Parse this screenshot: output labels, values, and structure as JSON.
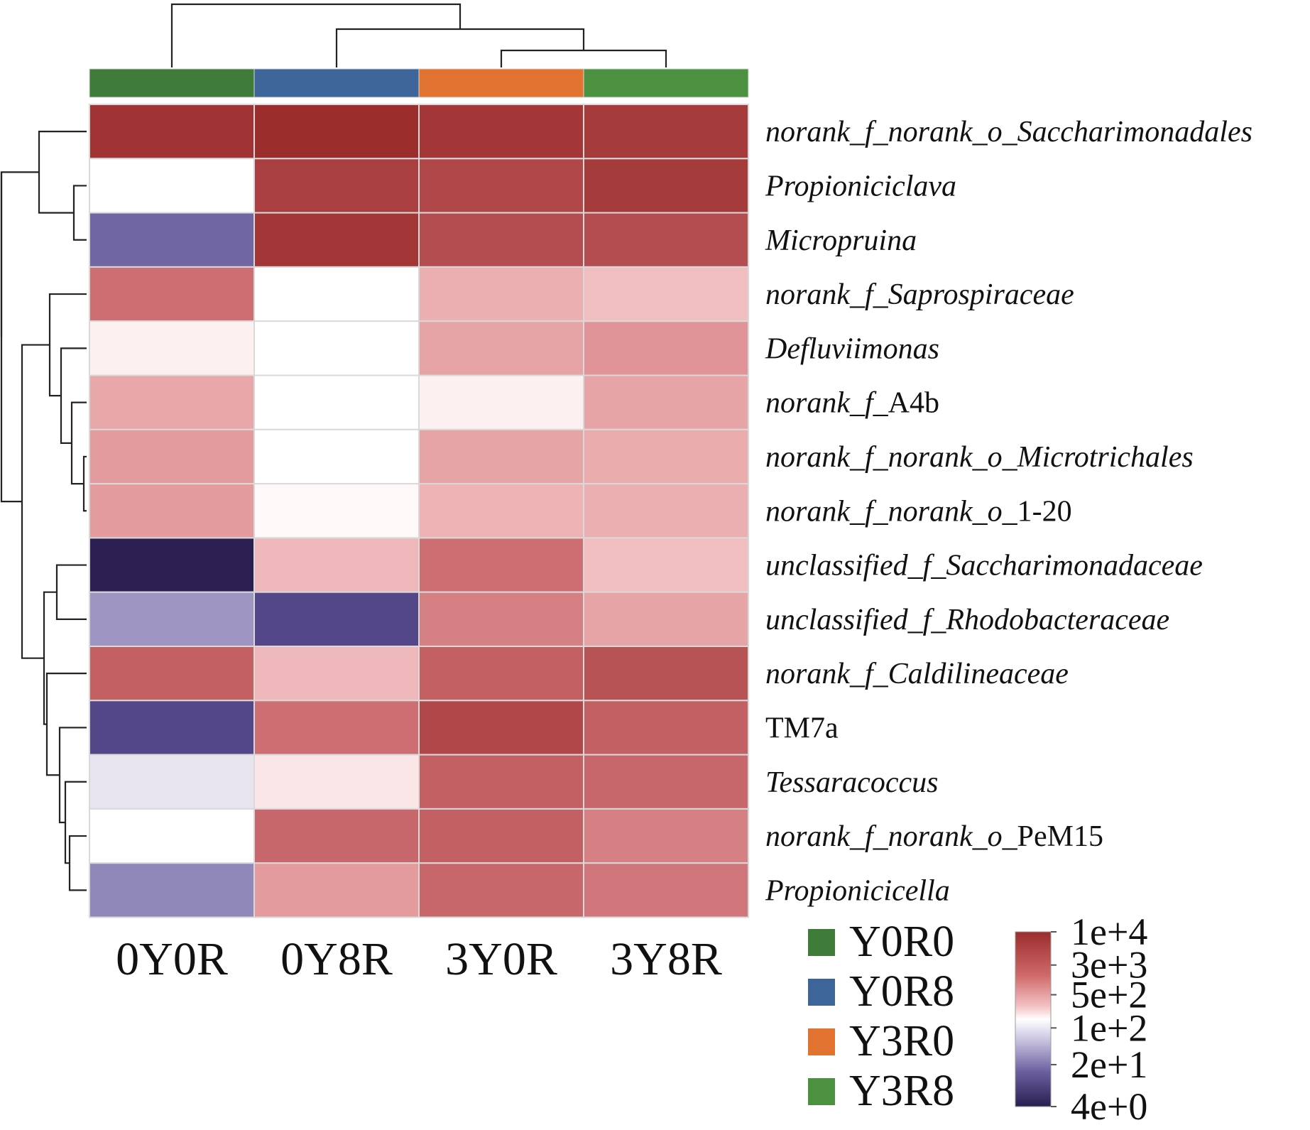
{
  "chart_data": {
    "type": "heatmap",
    "columns": [
      "0Y0R",
      "0Y8R",
      "3Y0R",
      "3Y8R"
    ],
    "rows": [
      {
        "label": "norank_f_norank_o_Saccharimonadales",
        "italic_prefix": "norank_f_norank_o_Saccharimonadales",
        "roman_suffix": ""
      },
      {
        "label": "Propioniciclava",
        "italic_prefix": "Propioniciclava",
        "roman_suffix": ""
      },
      {
        "label": "Micropruina",
        "italic_prefix": "Micropruina",
        "roman_suffix": ""
      },
      {
        "label": "norank_f_Saprospiraceae",
        "italic_prefix": "norank_f_Saprospiraceae",
        "roman_suffix": ""
      },
      {
        "label": "Defluviimonas",
        "italic_prefix": "Defluviimonas",
        "roman_suffix": ""
      },
      {
        "label": "norank_f_A4b",
        "italic_prefix": "norank_f_",
        "roman_suffix": "A4b"
      },
      {
        "label": "norank_f_norank_o_Microtrichales",
        "italic_prefix": "norank_f_norank_o_Microtrichales",
        "roman_suffix": ""
      },
      {
        "label": "norank_f_norank_o_1-20",
        "italic_prefix": "norank_f_norank_o_",
        "roman_suffix": "1-20"
      },
      {
        "label": "unclassified_f_Saccharimonadaceae",
        "italic_prefix": "unclassified_f_Saccharimonadaceae",
        "roman_suffix": ""
      },
      {
        "label": "unclassified_f_Rhodobacteraceae",
        "italic_prefix": "unclassified_f_Rhodobacteraceae",
        "roman_suffix": ""
      },
      {
        "label": "norank_f_Caldilineaceae",
        "italic_prefix": "norank_f_Caldilineaceae",
        "roman_suffix": ""
      },
      {
        "label": "TM7a",
        "italic_prefix": "",
        "roman_suffix": "TM7a"
      },
      {
        "label": "Tessaracoccus",
        "italic_prefix": "Tessaracoccus",
        "roman_suffix": ""
      },
      {
        "label": "norank_f_norank_o_PeM15",
        "italic_prefix": "norank_f_norank_o_",
        "roman_suffix": "PeM15"
      },
      {
        "label": "Propionicicella",
        "italic_prefix": "Propionicicella",
        "roman_suffix": ""
      }
    ],
    "values": [
      [
        9000,
        10000,
        8500,
        8000
      ],
      [
        100,
        7500,
        6500,
        8000
      ],
      [
        25,
        8500,
        6000,
        6000
      ],
      [
        3500,
        100,
        900,
        600
      ],
      [
        150,
        100,
        1200,
        1700
      ],
      [
        1100,
        100,
        150,
        1200
      ],
      [
        1500,
        100,
        1200,
        1000
      ],
      [
        1500,
        120,
        800,
        900
      ],
      [
        4,
        700,
        3500,
        600
      ],
      [
        40,
        15,
        2500,
        1200
      ],
      [
        4500,
        700,
        4500,
        5500
      ],
      [
        15,
        3500,
        6500,
        4500
      ],
      [
        80,
        200,
        4500,
        4000
      ],
      [
        100,
        4000,
        4500,
        2500
      ],
      [
        35,
        1500,
        4000,
        3000
      ]
    ],
    "group_colors": [
      "#3f7c3a",
      "#3e6599",
      "#e2722f",
      "#4c9140"
    ],
    "legend": [
      {
        "label": "Y0R0",
        "color": "#3f7c3a"
      },
      {
        "label": "Y0R8",
        "color": "#3e6599"
      },
      {
        "label": "Y3R0",
        "color": "#e2722f"
      },
      {
        "label": "Y3R8",
        "color": "#4c9140"
      }
    ],
    "colorbar": {
      "ticks": [
        "1e+4",
        "3e+3",
        "5e+2",
        "1e+2",
        "2e+1",
        "4e+0"
      ],
      "scale": "log",
      "range": [
        4,
        10000
      ],
      "color_low": "#2a1f50",
      "color_mid": "#ffffff",
      "color_high": "#9b2d2d"
    },
    "col_dendrogram": "((0Y0R),(0Y8R,(3Y0R,3Y8R)))",
    "row_dendrogram_order": "rows ordered as listed",
    "title": "",
    "xlabel": "",
    "ylabel": ""
  }
}
